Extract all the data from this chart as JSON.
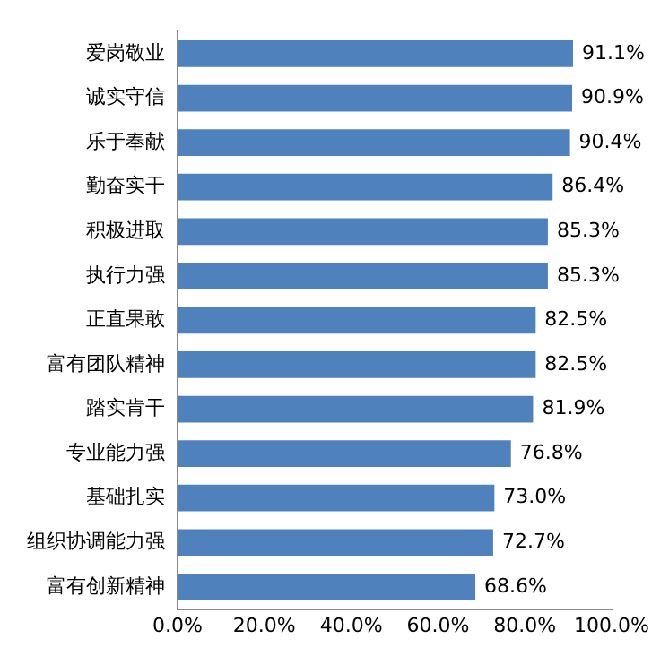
{
  "chart_data": {
    "type": "bar",
    "orientation": "horizontal",
    "categories": [
      "爱岗敬业",
      "诚实守信",
      "乐于奉献",
      "勤奋实干",
      "积极进取",
      "执行力强",
      "正直果敢",
      "富有团队精神",
      "踏实肯干",
      "专业能力强",
      "基础扎实",
      "组织协调能力强",
      "富有创新精神"
    ],
    "values": [
      91.1,
      90.9,
      90.4,
      86.4,
      85.3,
      85.3,
      82.5,
      82.5,
      81.9,
      76.8,
      73.0,
      72.7,
      68.6
    ],
    "value_labels": [
      "91.1%",
      "90.9%",
      "90.4%",
      "86.4%",
      "85.3%",
      "85.3%",
      "82.5%",
      "82.5%",
      "81.9%",
      "76.8%",
      "73.0%",
      "72.7%",
      "68.6%"
    ],
    "color": "#4f81bd",
    "xlim": [
      0,
      100
    ],
    "xticks": [
      {
        "value": 0,
        "label": "0.0%"
      },
      {
        "value": 20,
        "label": "20.0%"
      },
      {
        "value": 40,
        "label": "40.0%"
      },
      {
        "value": 60,
        "label": "60.0%"
      },
      {
        "value": 80,
        "label": "80.0%"
      },
      {
        "value": 100,
        "label": "100.0%"
      }
    ],
    "grid": false,
    "legend": false
  }
}
